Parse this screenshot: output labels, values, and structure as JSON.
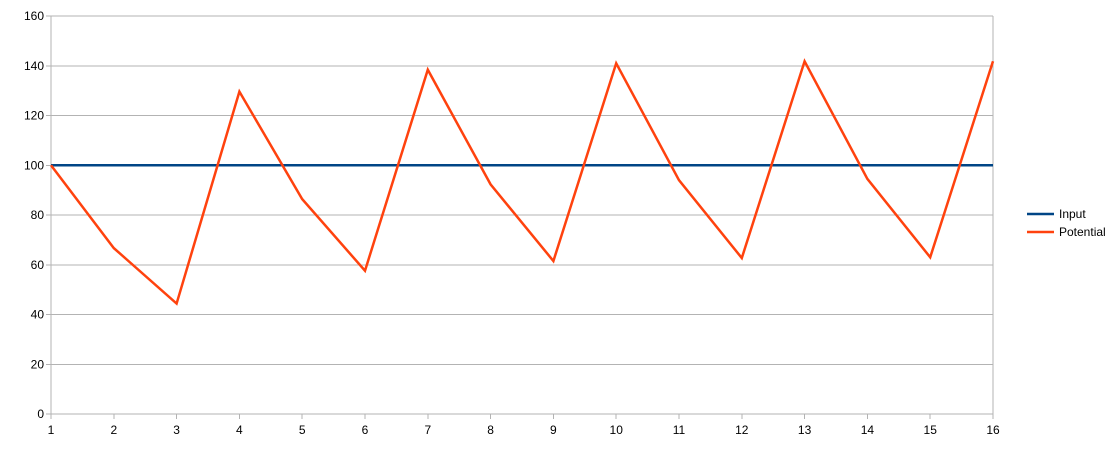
{
  "chart_data": {
    "type": "line",
    "title": "",
    "xlabel": "",
    "ylabel": "",
    "x": [
      1,
      2,
      3,
      4,
      5,
      6,
      7,
      8,
      9,
      10,
      11,
      12,
      13,
      14,
      15,
      16
    ],
    "x_tick_labels": [
      "1",
      "2",
      "3",
      "4",
      "5",
      "6",
      "7",
      "8",
      "9",
      "10",
      "11",
      "12",
      "13",
      "14",
      "15",
      "16"
    ],
    "ylim": [
      0,
      160
    ],
    "y_ticks": [
      0,
      20,
      40,
      60,
      80,
      100,
      120,
      140,
      160
    ],
    "y_tick_labels": [
      "0",
      "20",
      "40",
      "60",
      "80",
      "100",
      "120",
      "140",
      "160"
    ],
    "grid": true,
    "legend_position": "right",
    "series": [
      {
        "name": "Input",
        "color": "#004586",
        "values": [
          100,
          100,
          100,
          100,
          100,
          100,
          100,
          100,
          100,
          100,
          100,
          100,
          100,
          100,
          100,
          100
        ]
      },
      {
        "name": "Potential",
        "color": "#ff420e",
        "values": [
          100,
          66.7,
          44.4,
          129.6,
          86.4,
          57.6,
          138.4,
          92.3,
          61.5,
          141.0,
          94.0,
          62.7,
          141.8,
          94.5,
          63.0,
          141.8
        ]
      }
    ]
  }
}
